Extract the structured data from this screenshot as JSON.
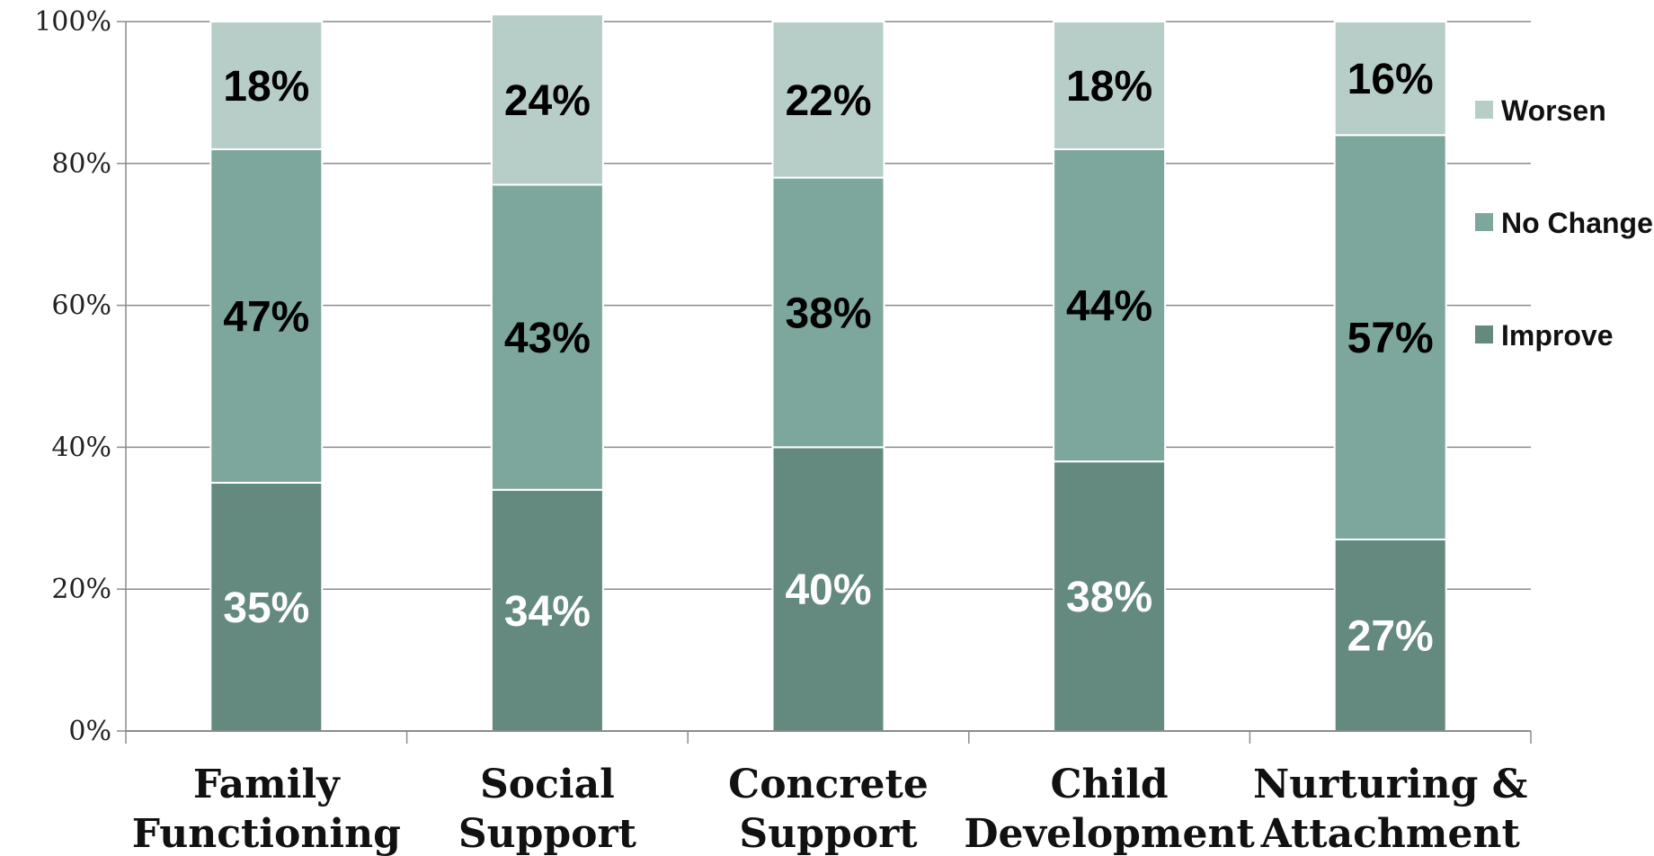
{
  "chart_data": {
    "type": "bar",
    "stacked": true,
    "categories": [
      [
        "Family",
        "Functioning"
      ],
      [
        "Social",
        "Support"
      ],
      [
        "Concrete",
        "Support"
      ],
      [
        "Child",
        "Development"
      ],
      [
        "Nurturing &",
        "Attachment"
      ]
    ],
    "series": [
      {
        "name": "Improve",
        "values": [
          35,
          34,
          40,
          38,
          27
        ],
        "labels": [
          "35%",
          "34%",
          "40%",
          "38%",
          "27%"
        ],
        "color": "#64897f",
        "label_color": "#ffffff"
      },
      {
        "name": "No Change",
        "values": [
          47,
          43,
          38,
          44,
          57
        ],
        "labels": [
          "47%",
          "43%",
          "38%",
          "44%",
          "57%"
        ],
        "color": "#7da79c",
        "label_color": "#000000"
      },
      {
        "name": "Worsen",
        "values": [
          18,
          24,
          22,
          18,
          16
        ],
        "labels": [
          "18%",
          "24%",
          "22%",
          "18%",
          "16%"
        ],
        "color": "#b7cec8",
        "label_color": "#000000"
      }
    ],
    "ylim": [
      0,
      100
    ],
    "yticks": [
      "0%",
      "20%",
      "40%",
      "60%",
      "80%",
      "100%"
    ],
    "grid": true,
    "legend": {
      "position": "right",
      "order": [
        "Worsen",
        "No Change",
        "Improve"
      ]
    },
    "title": "",
    "xlabel": "",
    "ylabel": ""
  }
}
